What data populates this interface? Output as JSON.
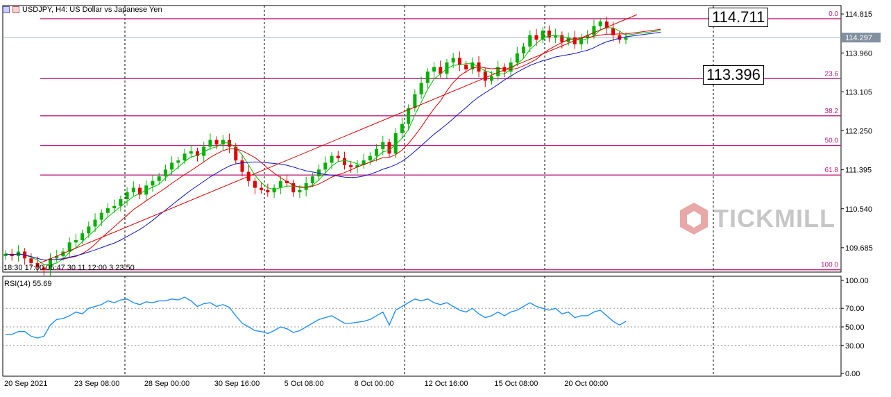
{
  "header": {
    "symbol_text": "USDJPY, H4:  US Dollar vs Japanese Yen"
  },
  "price_tags": {
    "high": "114.711",
    "low": "113.396",
    "current": "114.297"
  },
  "watermark": {
    "brand": "TICKMILL"
  },
  "rsi": {
    "label": "RSI(14) 55.69"
  },
  "crosshair_time_text": "18:30 17:00 05:47 30 11 12:00 3 23:50",
  "chart_data": [
    {
      "type": "line",
      "title": "",
      "price_range": [
        109.15,
        115.0
      ],
      "y_ticks": [
        "114.815",
        "113.960",
        "113.105",
        "112.250",
        "111.395",
        "110.540",
        "109.685"
      ],
      "y_tick_values": [
        114.815,
        113.96,
        113.105,
        112.25,
        111.395,
        110.54,
        109.685
      ],
      "x_tick_labels": [
        "20 Sep 2021",
        "23 Sep 08:00",
        "28 Sep 00:00",
        "30 Sep 16:00",
        "5 Oct 08:00",
        "8 Oct 00:00",
        "12 Oct 16:00",
        "15 Oct 08:00",
        "20 Oct 00:00"
      ],
      "fibonacci": [
        {
          "level": "0.0",
          "price": 114.711
        },
        {
          "level": "23.6",
          "price": 113.396
        },
        {
          "level": "38.2",
          "price": 112.58
        },
        {
          "level": "50.0",
          "price": 111.93
        },
        {
          "level": "61.8",
          "price": 111.28
        },
        {
          "level": "100.0",
          "price": 109.2
        }
      ],
      "current_price": 114.297,
      "close_series": [
        109.55,
        109.5,
        109.6,
        109.45,
        109.35,
        109.25,
        109.2,
        109.45,
        109.5,
        109.6,
        109.8,
        109.85,
        110.0,
        110.15,
        110.3,
        110.45,
        110.55,
        110.6,
        110.75,
        110.9,
        111.0,
        110.85,
        111.05,
        111.15,
        111.25,
        111.4,
        111.55,
        111.6,
        111.75,
        111.8,
        111.7,
        111.9,
        112.05,
        111.95,
        112.05,
        111.9,
        111.6,
        111.35,
        111.15,
        111.0,
        110.95,
        110.9,
        111.0,
        111.15,
        111.1,
        110.9,
        110.95,
        111.1,
        111.25,
        111.4,
        111.55,
        111.7,
        111.65,
        111.5,
        111.45,
        111.5,
        111.6,
        111.7,
        111.85,
        112.0,
        111.75,
        112.2,
        112.4,
        112.75,
        113.05,
        113.3,
        113.55,
        113.65,
        113.5,
        113.75,
        113.85,
        113.7,
        113.6,
        113.75,
        113.55,
        113.35,
        113.45,
        113.65,
        113.55,
        113.75,
        113.95,
        114.1,
        114.35,
        114.25,
        114.45,
        114.3,
        114.35,
        114.2,
        114.3,
        114.15,
        114.3,
        114.35,
        114.55,
        114.65,
        114.5,
        114.35,
        114.25,
        114.3
      ],
      "series": [
        {
          "name": "",
          "color": "#00c000"
        },
        {
          "name": "",
          "color": "#e00000"
        },
        {
          "name": "",
          "color": "#1010d0"
        },
        {
          "name": "",
          "color": "#e00000"
        }
      ]
    },
    {
      "type": "line",
      "title": "RSI(14) 55.69",
      "ylim": [
        0,
        100
      ],
      "y_ticks": [
        "100.00",
        "70.00",
        "50.00",
        "30.00",
        "0.00"
      ],
      "y_tick_values": [
        100,
        70,
        50,
        30,
        0
      ],
      "levels": [
        70,
        50,
        30
      ],
      "series": [
        {
          "name": "RSI(14)",
          "color": "#1e90ff",
          "values": [
            42,
            42,
            45,
            45,
            40,
            38,
            40,
            52,
            58,
            59,
            62,
            66,
            64,
            70,
            72,
            74,
            78,
            76,
            79,
            80,
            76,
            74,
            77,
            76,
            78,
            78,
            80,
            79,
            82,
            78,
            72,
            75,
            76,
            72,
            74,
            71,
            62,
            54,
            50,
            46,
            45,
            43,
            46,
            50,
            48,
            44,
            46,
            50,
            54,
            58,
            60,
            62,
            58,
            54,
            54,
            55,
            56,
            58,
            62,
            66,
            52,
            68,
            72,
            76,
            80,
            78,
            80,
            76,
            74,
            76,
            72,
            68,
            66,
            70,
            64,
            60,
            62,
            66,
            62,
            66,
            68,
            72,
            76,
            72,
            70,
            68,
            70,
            64,
            66,
            60,
            62,
            62,
            66,
            68,
            62,
            56,
            52,
            56
          ]
        }
      ]
    }
  ]
}
